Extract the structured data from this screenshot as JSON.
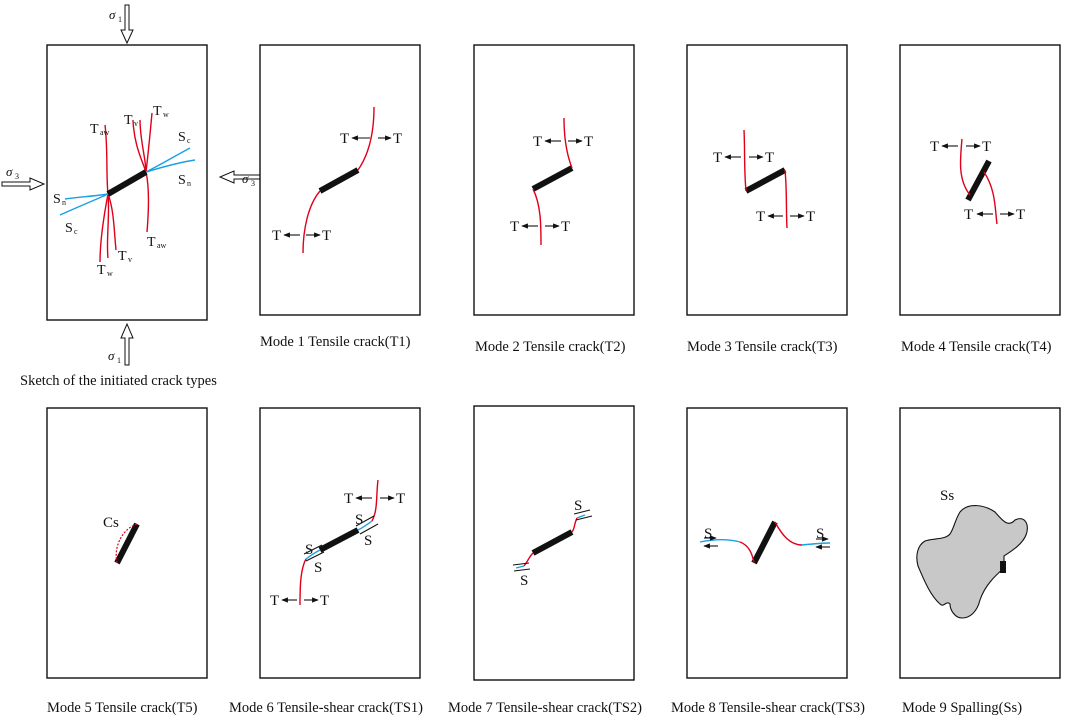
{
  "figure": {
    "sketch": {
      "caption": "Sketch of the initiated crack types",
      "stress_sigma1": "σ",
      "stress_sigma3": "σ",
      "stress_sub1": "1",
      "stress_sub3": "3",
      "crack_labels": {
        "T": "T",
        "S": "S",
        "aw": "aw",
        "v": "v",
        "w": "w",
        "c": "c",
        "n": "n"
      }
    },
    "modes": [
      {
        "caption": "Mode 1 Tensile crack(T1)"
      },
      {
        "caption": "Mode 2 Tensile crack(T2)"
      },
      {
        "caption": "Mode 3 Tensile crack(T3)"
      },
      {
        "caption": "Mode 4 Tensile crack(T4)"
      },
      {
        "caption": "Mode 5 Tensile crack(T5)"
      },
      {
        "caption": "Mode 6 Tensile-shear crack(TS1)"
      },
      {
        "caption": "Mode 7 Tensile-shear crack(TS2)"
      },
      {
        "caption": "Mode 8 Tensile-shear crack(TS3)"
      },
      {
        "caption": "Mode 9 Spalling(Ss)"
      }
    ],
    "marks": {
      "T": "T",
      "S": "S",
      "Cs": "Cs",
      "Ss": "Ss"
    },
    "colors": {
      "tensile_crack": "#e0001a",
      "shear_crack": "#1aa0e6",
      "flaw": "#111111",
      "spall_fill": "#c8c8c8"
    }
  }
}
